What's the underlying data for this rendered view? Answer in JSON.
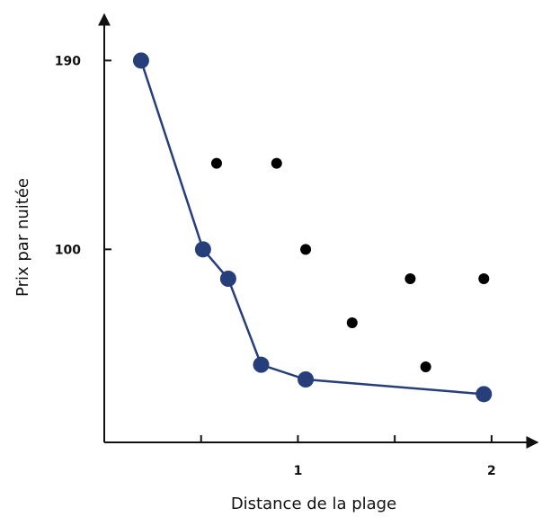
{
  "chart_data": {
    "type": "scatter",
    "xlabel": "Distance de la plage",
    "ylabel": "Prix par nuitée",
    "xlim": [
      0,
      2.2
    ],
    "ylim": [
      8,
      212
    ],
    "x_ticks": [
      {
        "value": 0.5,
        "label": ""
      },
      {
        "value": 1,
        "label": "1"
      },
      {
        "value": 1.5,
        "label": ""
      },
      {
        "value": 2,
        "label": "2"
      }
    ],
    "y_ticks": [
      {
        "value": 100,
        "label": "100"
      },
      {
        "value": 190,
        "label": "190"
      }
    ],
    "grid": false,
    "legend": "none",
    "series": [
      {
        "role": "frontier",
        "color": "#263F7A",
        "points": [
          {
            "x": 0.19,
            "y": 190
          },
          {
            "x": 0.51,
            "y": 100
          },
          {
            "x": 0.64,
            "y": 86
          },
          {
            "x": 0.81,
            "y": 45
          },
          {
            "x": 1.04,
            "y": 38
          },
          {
            "x": 1.96,
            "y": 31
          }
        ]
      },
      {
        "role": "other",
        "color": "#000000",
        "points": [
          {
            "x": 0.58,
            "y": 141
          },
          {
            "x": 0.89,
            "y": 141
          },
          {
            "x": 1.04,
            "y": 100
          },
          {
            "x": 1.28,
            "y": 65
          },
          {
            "x": 1.58,
            "y": 86
          },
          {
            "x": 1.96,
            "y": 86
          },
          {
            "x": 1.66,
            "y": 44
          }
        ]
      }
    ]
  }
}
